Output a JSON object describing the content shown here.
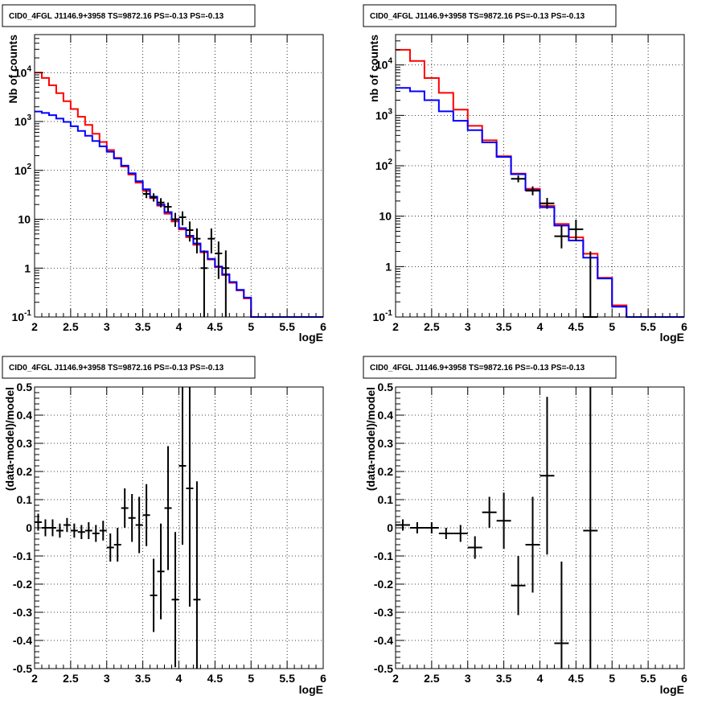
{
  "chart_data": [
    {
      "type": "line",
      "title": "CID0_4FGL J1146.9+3958 TS=9872.16 PS=-0.13 PS=-0.13",
      "xlabel": "logE",
      "ylabel": "Nb of counts",
      "xlim": [
        2,
        6
      ],
      "ylim": [
        0.1,
        60000
      ],
      "yscale": "log",
      "grid": true,
      "x_ticks": [
        "2",
        "2.5",
        "3",
        "3.5",
        "4",
        "4.5",
        "5",
        "5.5",
        "6"
      ],
      "y_ticks": [
        "10^-1",
        "1",
        "10",
        "10^2",
        "10^3",
        "10^4"
      ],
      "bin_edges": [
        2.0,
        2.1,
        2.2,
        2.3,
        2.4,
        2.5,
        2.6,
        2.7,
        2.8,
        2.9,
        3.0,
        3.1,
        3.2,
        3.3,
        3.4,
        3.5,
        3.6,
        3.7,
        3.8,
        3.9,
        4.0,
        4.1,
        4.2,
        4.3,
        4.4,
        4.5,
        4.6,
        4.7,
        4.8,
        4.9,
        5.0,
        5.1,
        5.2,
        5.3,
        5.4,
        5.5,
        5.6,
        5.7,
        5.8,
        5.9,
        6.0
      ],
      "series": [
        {
          "color": "#ff0000",
          "values": [
            10000,
            7800,
            5500,
            3800,
            2600,
            1800,
            1250,
            850,
            560,
            380,
            260,
            180,
            120,
            82,
            56,
            38,
            27,
            19,
            13,
            9,
            6.2,
            4.3,
            3.0,
            2.1,
            1.5,
            1.05,
            0.72,
            0.5,
            0.35,
            0.24,
            0.1,
            0.1,
            0.1,
            0.1,
            0.1,
            0.1,
            0.1,
            0.1,
            0.1,
            0.1
          ]
        },
        {
          "color": "#0000ff",
          "values": [
            1600,
            1500,
            1350,
            1150,
            980,
            800,
            640,
            510,
            400,
            310,
            240,
            175,
            125,
            87,
            60,
            41,
            29,
            20,
            14,
            9.8,
            6.6,
            4.6,
            3.2,
            2.2,
            1.55,
            1.08,
            0.75,
            0.52,
            0.36,
            0.25,
            0.1,
            0.1,
            0.1,
            0.1,
            0.1,
            0.1,
            0.1,
            0.1,
            0.1,
            0.1
          ]
        }
      ],
      "data_points": {
        "x": [
          3.55,
          3.65,
          3.75,
          3.85,
          3.95,
          4.05,
          4.15,
          4.25,
          4.35,
          4.45,
          4.55,
          4.65
        ],
        "y": [
          33,
          28,
          22,
          18,
          10,
          11,
          6,
          4,
          1,
          4,
          2,
          1
        ],
        "ylow": [
          27,
          23,
          17.5,
          14,
          7,
          7.5,
          3.5,
          2,
          0.1,
          2,
          0.6,
          0.1
        ],
        "yhigh": [
          40,
          34,
          27,
          22,
          13.5,
          14.5,
          9,
          6.5,
          2.3,
          6.5,
          3.5,
          2.3
        ]
      }
    },
    {
      "type": "line",
      "title": "CID0_4FGL J1146.9+3958 TS=9872.16 PS=-0.13 PS=-0.13",
      "xlabel": "logE",
      "ylabel": "nb of counts",
      "xlim": [
        2,
        6
      ],
      "ylim": [
        0.1,
        40000
      ],
      "yscale": "log",
      "grid": true,
      "x_ticks": [
        "2",
        "2.5",
        "3",
        "3.5",
        "4",
        "4.5",
        "5",
        "5.5",
        "6"
      ],
      "y_ticks": [
        "10^-1",
        "1",
        "10",
        "10^2",
        "10^3",
        "10^4"
      ],
      "bin_edges": [
        2.0,
        2.2,
        2.4,
        2.6,
        2.8,
        3.0,
        3.2,
        3.4,
        3.6,
        3.8,
        4.0,
        4.2,
        4.4,
        4.6,
        4.8,
        5.0,
        5.2,
        5.4,
        5.6,
        5.8,
        6.0
      ],
      "series": [
        {
          "color": "#ff0000",
          "values": [
            20000,
            12000,
            5500,
            2800,
            1300,
            620,
            320,
            155,
            70,
            35,
            16,
            7,
            3.8,
            1.8,
            0.6,
            0.17,
            0.1,
            0.1,
            0.1,
            0.1
          ]
        },
        {
          "color": "#0000ff",
          "values": [
            3500,
            3000,
            2000,
            1200,
            780,
            510,
            290,
            150,
            68,
            33,
            15,
            6.5,
            3.3,
            1.5,
            0.58,
            0.16,
            0.1,
            0.1,
            0.1,
            0.1
          ]
        }
      ],
      "data_points": {
        "x": [
          3.7,
          3.9,
          4.1,
          4.3,
          4.5,
          4.7
        ],
        "y": [
          55,
          32,
          18,
          4,
          5.5,
          0.1
        ],
        "ylow": [
          47,
          26,
          14,
          2.3,
          3.2,
          0.1
        ],
        "yhigh": [
          64,
          39,
          23,
          6.5,
          8.5,
          2
        ]
      }
    },
    {
      "type": "scatter",
      "title": "CID0_4FGL J1146.9+3958 TS=9872.16 PS=-0.13 PS=-0.13",
      "xlabel": "logE",
      "ylabel": "(data-model)/model",
      "xlim": [
        2,
        6
      ],
      "ylim": [
        -0.5,
        0.5
      ],
      "grid": true,
      "x_ticks": [
        "2",
        "2.5",
        "3",
        "3.5",
        "4",
        "4.5",
        "5",
        "5.5",
        "6"
      ],
      "y_ticks": [
        "-0.5",
        "-0.4",
        "-0.3",
        "-0.2",
        "-0.1",
        "0",
        "0.1",
        "0.2",
        "0.3",
        "0.4",
        "0.5"
      ],
      "points": [
        {
          "x": 2.05,
          "y": 0.02,
          "err": 0.03
        },
        {
          "x": 2.15,
          "y": 0.0,
          "err": 0.03
        },
        {
          "x": 2.25,
          "y": 0.0,
          "err": 0.03
        },
        {
          "x": 2.35,
          "y": -0.01,
          "err": 0.025
        },
        {
          "x": 2.45,
          "y": 0.01,
          "err": 0.025
        },
        {
          "x": 2.55,
          "y": -0.01,
          "err": 0.025
        },
        {
          "x": 2.65,
          "y": -0.015,
          "err": 0.025
        },
        {
          "x": 2.75,
          "y": -0.01,
          "err": 0.03
        },
        {
          "x": 2.85,
          "y": -0.02,
          "err": 0.03
        },
        {
          "x": 2.95,
          "y": -0.01,
          "err": 0.035
        },
        {
          "x": 3.05,
          "y": -0.07,
          "err": 0.05
        },
        {
          "x": 3.15,
          "y": -0.06,
          "err": 0.06
        },
        {
          "x": 3.25,
          "y": 0.07,
          "err": 0.07
        },
        {
          "x": 3.35,
          "y": 0.035,
          "err": 0.085
        },
        {
          "x": 3.45,
          "y": 0.01,
          "err": 0.1
        },
        {
          "x": 3.55,
          "y": 0.045,
          "err": 0.11
        },
        {
          "x": 3.65,
          "y": -0.24,
          "err": 0.13
        },
        {
          "x": 3.75,
          "y": -0.155,
          "err": 0.17
        },
        {
          "x": 3.85,
          "y": 0.07,
          "err": 0.22
        },
        {
          "x": 3.95,
          "y": -0.255,
          "err": 0.24
        },
        {
          "x": 4.05,
          "y": 0.22,
          "err": 0.28
        },
        {
          "x": 4.15,
          "y": 0.14,
          "err": 0.42
        },
        {
          "x": 4.25,
          "y": -0.255,
          "err": 0.42
        }
      ]
    },
    {
      "type": "scatter",
      "title": "CID0_4FGL J1146.9+3958 TS=9872.16 PS=-0.13 PS=-0.13",
      "xlabel": "logE",
      "ylabel": "(data-model)/model",
      "xlim": [
        2,
        6
      ],
      "ylim": [
        -0.5,
        0.5
      ],
      "grid": true,
      "x_ticks": [
        "2",
        "2.5",
        "3",
        "3.5",
        "4",
        "4.5",
        "5",
        "5.5",
        "6"
      ],
      "y_ticks": [
        "-0.5",
        "-0.4",
        "-0.3",
        "-0.2",
        "-0.1",
        "0",
        "0.1",
        "0.2",
        "0.3",
        "0.4",
        "0.5"
      ],
      "points": [
        {
          "x": 2.1,
          "y": 0.01,
          "err": 0.02
        },
        {
          "x": 2.3,
          "y": 0.0,
          "err": 0.02
        },
        {
          "x": 2.5,
          "y": 0.0,
          "err": 0.02
        },
        {
          "x": 2.7,
          "y": -0.02,
          "err": 0.02
        },
        {
          "x": 2.9,
          "y": -0.02,
          "err": 0.03
        },
        {
          "x": 3.1,
          "y": -0.07,
          "err": 0.04
        },
        {
          "x": 3.3,
          "y": 0.055,
          "err": 0.055
        },
        {
          "x": 3.5,
          "y": 0.025,
          "err": 0.1
        },
        {
          "x": 3.7,
          "y": -0.205,
          "err": 0.105
        },
        {
          "x": 3.9,
          "y": -0.06,
          "err": 0.17
        },
        {
          "x": 4.1,
          "y": 0.185,
          "err": 0.28
        },
        {
          "x": 4.3,
          "y": -0.41,
          "err": 0.29
        },
        {
          "x": 4.7,
          "y": -0.01,
          "err": 0.51
        }
      ]
    }
  ]
}
